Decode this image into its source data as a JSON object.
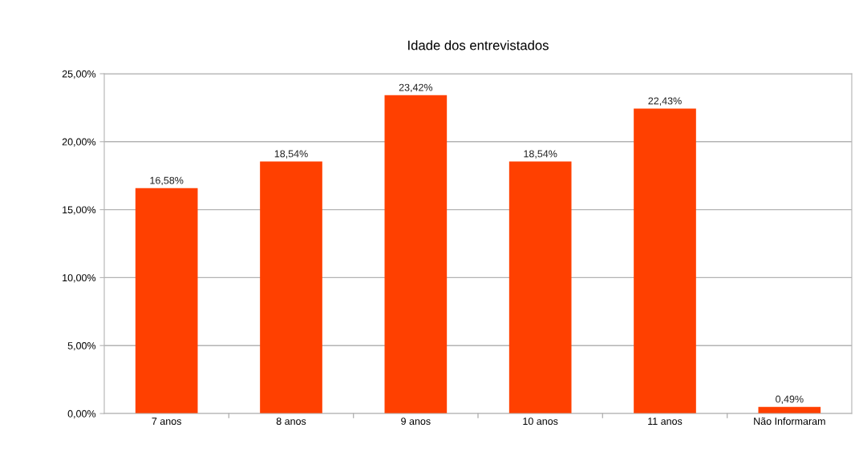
{
  "chart_data": {
    "type": "bar",
    "title": "Idade dos entrevistados",
    "categories": [
      "7 anos",
      "8 anos",
      "9 anos",
      "10 anos",
      "11 anos",
      "Não Informaram"
    ],
    "values": [
      16.58,
      18.54,
      23.42,
      18.54,
      22.43,
      0.49
    ],
    "value_labels": [
      "16,58%",
      "18,54%",
      "23,42%",
      "18,54%",
      "22,43%",
      "0,49%"
    ],
    "color": "#ff4000",
    "ylim": [
      0,
      25
    ],
    "yticks": [
      {
        "value": 0,
        "label": "0,00%"
      },
      {
        "value": 5,
        "label": "5,00%"
      },
      {
        "value": 10,
        "label": "10,00%"
      },
      {
        "value": 15,
        "label": "15,00%"
      },
      {
        "value": 20,
        "label": "20,00%"
      },
      {
        "value": 25,
        "label": "25,00%"
      }
    ],
    "grid": "y"
  }
}
